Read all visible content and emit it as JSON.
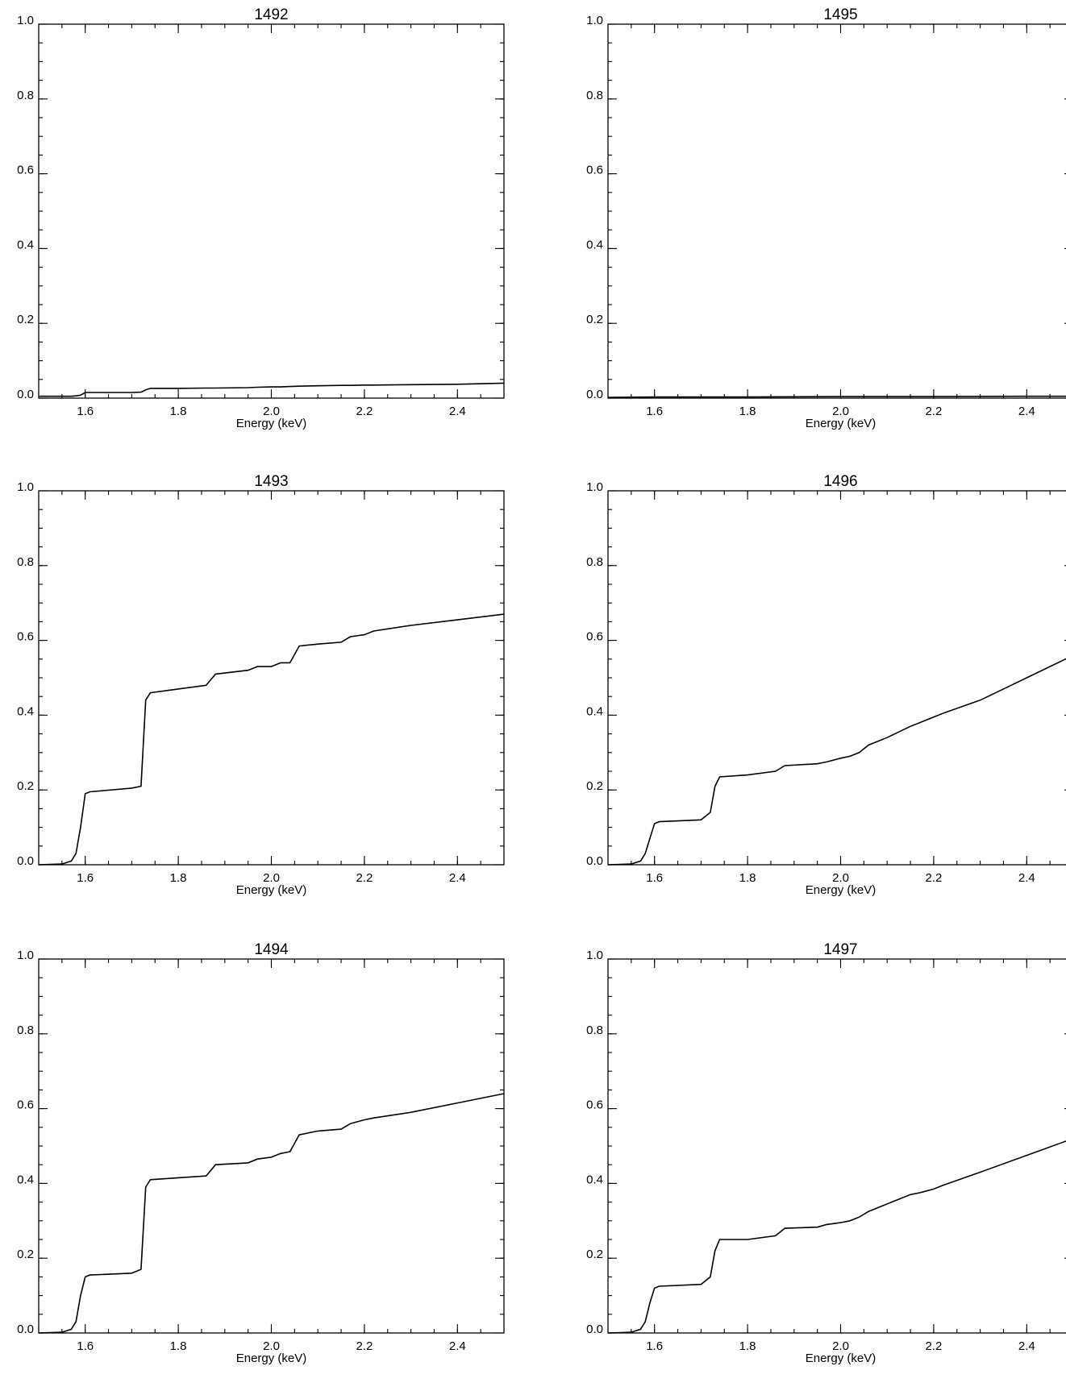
{
  "chart_data": [
    {
      "type": "line",
      "title": "1492",
      "x_label": "Energy (keV)",
      "x": [
        1.5,
        1.55,
        1.57,
        1.58,
        1.59,
        1.6,
        1.61,
        1.7,
        1.72,
        1.73,
        1.74,
        1.8,
        1.86,
        1.88,
        1.95,
        1.97,
        2.0,
        2.02,
        2.04,
        2.06,
        2.1,
        2.15,
        2.17,
        2.2,
        2.22,
        2.3,
        2.4,
        2.5
      ],
      "values": [
        0.005,
        0.005,
        0.005,
        0.006,
        0.008,
        0.015,
        0.015,
        0.015,
        0.016,
        0.022,
        0.026,
        0.026,
        0.027,
        0.027,
        0.028,
        0.029,
        0.03,
        0.03,
        0.031,
        0.032,
        0.033,
        0.034,
        0.034,
        0.035,
        0.035,
        0.036,
        0.037,
        0.04
      ],
      "color": "#000000",
      "xlim": [
        1.5,
        2.5
      ],
      "ylim": [
        0,
        1
      ],
      "xticks": [
        1.6,
        1.8,
        {
          "value": 2.0,
          "label": "2.0"
        },
        2.2,
        2.4
      ],
      "yticks": [
        {
          "value": 0,
          "label": "0.0"
        },
        0.2,
        0.4,
        0.6,
        0.8,
        {
          "value": 1,
          "label": "1.0"
        }
      ]
    },
    {
      "type": "line",
      "title": "1493",
      "x_label": "Energy (keV)",
      "x": [
        1.5,
        1.55,
        1.57,
        1.58,
        1.59,
        1.6,
        1.61,
        1.7,
        1.72,
        1.73,
        1.74,
        1.8,
        1.86,
        1.88,
        1.95,
        1.97,
        2.0,
        2.02,
        2.04,
        2.06,
        2.1,
        2.15,
        2.17,
        2.2,
        2.22,
        2.3,
        2.4,
        2.5
      ],
      "values": [
        0,
        0.002,
        0.01,
        0.03,
        0.1,
        0.19,
        0.195,
        0.205,
        0.21,
        0.44,
        0.46,
        0.47,
        0.48,
        0.51,
        0.52,
        0.53,
        0.53,
        0.54,
        0.54,
        0.585,
        0.59,
        0.595,
        0.61,
        0.615,
        0.625,
        0.64,
        0.655,
        0.67
      ],
      "color": "#000000",
      "xlim": [
        1.5,
        2.5
      ],
      "ylim": [
        0,
        1
      ],
      "xticks": [
        1.6,
        1.8,
        {
          "value": 2.0,
          "label": "2.0"
        },
        2.2,
        2.4
      ],
      "yticks": [
        {
          "value": 0,
          "label": "0.0"
        },
        0.2,
        0.4,
        0.6,
        0.8,
        {
          "value": 1,
          "label": "1.0"
        }
      ]
    },
    {
      "type": "line",
      "title": "1494",
      "x_label": "Energy (keV)",
      "x": [
        1.5,
        1.55,
        1.57,
        1.58,
        1.59,
        1.6,
        1.61,
        1.7,
        1.72,
        1.73,
        1.74,
        1.8,
        1.86,
        1.88,
        1.95,
        1.97,
        2.0,
        2.02,
        2.04,
        2.06,
        2.1,
        2.15,
        2.17,
        2.2,
        2.22,
        2.3,
        2.4,
        2.5
      ],
      "values": [
        0,
        0.002,
        0.01,
        0.03,
        0.1,
        0.15,
        0.155,
        0.16,
        0.17,
        0.39,
        0.41,
        0.415,
        0.42,
        0.45,
        0.455,
        0.465,
        0.47,
        0.48,
        0.485,
        0.53,
        0.54,
        0.545,
        0.56,
        0.57,
        0.575,
        0.59,
        0.615,
        0.64
      ],
      "color": "#000000",
      "xlim": [
        1.5,
        2.5
      ],
      "ylim": [
        0,
        1
      ],
      "xticks": [
        1.6,
        1.8,
        {
          "value": 2.0,
          "label": "2.0"
        },
        2.2,
        2.4
      ],
      "yticks": [
        {
          "value": 0,
          "label": "0.0"
        },
        0.2,
        0.4,
        0.6,
        0.8,
        {
          "value": 1,
          "label": "1.0"
        }
      ]
    },
    {
      "type": "line",
      "title": "1495",
      "x_label": "Energy (keV)",
      "x": [
        1.5,
        1.6,
        1.8,
        2.0,
        2.2,
        2.4,
        2.5
      ],
      "values": [
        0.002,
        0.003,
        0.003,
        0.004,
        0.004,
        0.005,
        0.005
      ],
      "color": "#000000",
      "xlim": [
        1.5,
        2.5
      ],
      "ylim": [
        0,
        1
      ],
      "xticks": [
        1.6,
        1.8,
        {
          "value": 2.0,
          "label": "2.0"
        },
        2.2,
        2.4
      ],
      "yticks": [
        {
          "value": 0,
          "label": "0.0"
        },
        0.2,
        0.4,
        0.6,
        0.8,
        {
          "value": 1,
          "label": "1.0"
        }
      ]
    },
    {
      "type": "line",
      "title": "1496",
      "x_label": "Energy (keV)",
      "x": [
        1.5,
        1.55,
        1.57,
        1.58,
        1.59,
        1.6,
        1.61,
        1.7,
        1.72,
        1.73,
        1.74,
        1.8,
        1.86,
        1.88,
        1.95,
        1.97,
        2.0,
        2.02,
        2.04,
        2.06,
        2.1,
        2.15,
        2.17,
        2.2,
        2.22,
        2.3,
        2.4,
        2.5
      ],
      "values": [
        0,
        0.002,
        0.01,
        0.03,
        0.07,
        0.11,
        0.115,
        0.12,
        0.14,
        0.21,
        0.235,
        0.24,
        0.25,
        0.265,
        0.27,
        0.275,
        0.285,
        0.29,
        0.3,
        0.32,
        0.34,
        0.37,
        0.38,
        0.395,
        0.405,
        0.44,
        0.5,
        0.56
      ],
      "color": "#000000",
      "xlim": [
        1.5,
        2.5
      ],
      "ylim": [
        0,
        1
      ],
      "xticks": [
        1.6,
        1.8,
        {
          "value": 2.0,
          "label": "2.0"
        },
        2.2,
        2.4
      ],
      "yticks": [
        {
          "value": 0,
          "label": "0.0"
        },
        0.2,
        0.4,
        0.6,
        0.8,
        {
          "value": 1,
          "label": "1.0"
        }
      ]
    },
    {
      "type": "line",
      "title": "1497",
      "x_label": "Energy (keV)",
      "x": [
        1.5,
        1.55,
        1.57,
        1.58,
        1.59,
        1.6,
        1.61,
        1.7,
        1.72,
        1.73,
        1.74,
        1.8,
        1.86,
        1.88,
        1.95,
        1.97,
        2.0,
        2.02,
        2.04,
        2.06,
        2.1,
        2.15,
        2.17,
        2.2,
        2.22,
        2.3,
        2.4,
        2.5
      ],
      "values": [
        0,
        0.002,
        0.01,
        0.03,
        0.08,
        0.12,
        0.125,
        0.13,
        0.15,
        0.22,
        0.25,
        0.25,
        0.26,
        0.28,
        0.283,
        0.29,
        0.295,
        0.3,
        0.31,
        0.325,
        0.345,
        0.37,
        0.375,
        0.385,
        0.395,
        0.43,
        0.475,
        0.52
      ],
      "color": "#000000",
      "xlim": [
        1.5,
        2.5
      ],
      "ylim": [
        0,
        1
      ],
      "xticks": [
        1.6,
        1.8,
        {
          "value": 2.0,
          "label": "2.0"
        },
        2.2,
        2.4
      ],
      "yticks": [
        {
          "value": 0,
          "label": "0.0"
        },
        0.2,
        0.4,
        0.6,
        0.8,
        {
          "value": 1,
          "label": "1.0"
        }
      ]
    }
  ]
}
